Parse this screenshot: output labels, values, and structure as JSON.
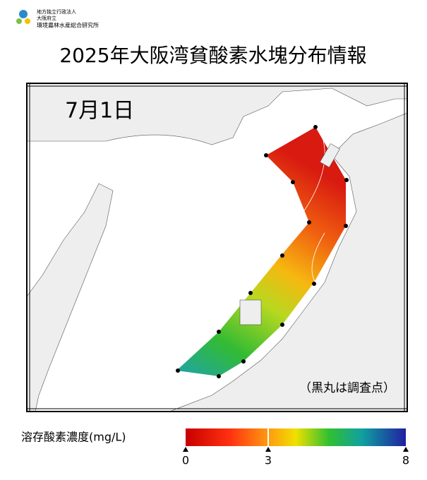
{
  "header": {
    "org_line1": "地方独立行政法人",
    "org_line2": "大阪府立",
    "org_line3": "環境農林水産総合研究所"
  },
  "title": "2025年大阪湾貧酸素水塊分布情報",
  "map": {
    "date": "7月1日",
    "note": "（黒丸は調査点）"
  },
  "colorbar": {
    "label": "溶存酸素濃度(mg/L)",
    "lim": [
      0,
      8
    ],
    "ticks": [
      0,
      3,
      8
    ]
  }
}
